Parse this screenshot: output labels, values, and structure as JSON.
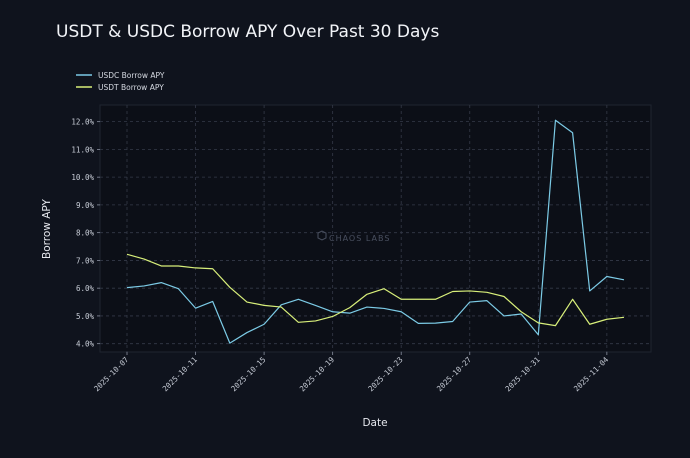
{
  "chart_data": {
    "type": "line",
    "title": "USDT & USDC Borrow APY Over Past 30 Days",
    "xlabel": "Date",
    "ylabel": "Borrow APY",
    "watermark": "CHAOS LABS",
    "ylim": [
      3.7,
      12.6
    ],
    "yticks": [
      "4.0%",
      "5.0%",
      "6.0%",
      "7.0%",
      "8.0%",
      "9.0%",
      "10.0%",
      "11.0%",
      "12.0%"
    ],
    "ytick_values": [
      4,
      5,
      6,
      7,
      8,
      9,
      10,
      11,
      12
    ],
    "xticks": [
      "2025-10-07",
      "2025-10-11",
      "2025-10-15",
      "2025-10-19",
      "2025-10-23",
      "2025-10-27",
      "2025-10-31",
      "2025-11-04"
    ],
    "x": [
      "2025-10-07",
      "2025-10-08",
      "2025-10-09",
      "2025-10-10",
      "2025-10-11",
      "2025-10-12",
      "2025-10-13",
      "2025-10-14",
      "2025-10-15",
      "2025-10-16",
      "2025-10-17",
      "2025-10-18",
      "2025-10-19",
      "2025-10-20",
      "2025-10-21",
      "2025-10-22",
      "2025-10-23",
      "2025-10-24",
      "2025-10-25",
      "2025-10-26",
      "2025-10-27",
      "2025-10-28",
      "2025-10-29",
      "2025-10-30",
      "2025-10-31",
      "2025-11-01",
      "2025-11-02",
      "2025-11-03",
      "2025-11-04",
      "2025-11-05"
    ],
    "grid": true,
    "legend_position": "top-left",
    "series": [
      {
        "name": "USDC Borrow APY",
        "color": "#7ccbe6",
        "values": [
          6.02,
          6.08,
          6.2,
          5.98,
          5.28,
          5.52,
          4.02,
          4.4,
          4.7,
          5.4,
          5.6,
          5.38,
          5.15,
          5.1,
          5.32,
          5.27,
          5.15,
          4.73,
          4.74,
          4.8,
          5.5,
          5.55,
          5.0,
          5.07,
          4.32,
          12.05,
          11.6,
          5.9,
          6.42,
          6.3
        ]
      },
      {
        "name": "USDT Borrow APY",
        "color": "#d8ef7a",
        "values": [
          7.22,
          7.05,
          6.8,
          6.8,
          6.73,
          6.7,
          6.03,
          5.5,
          5.38,
          5.32,
          4.77,
          4.82,
          4.98,
          5.3,
          5.78,
          5.98,
          5.6,
          5.6,
          5.6,
          5.88,
          5.9,
          5.85,
          5.7,
          5.15,
          4.75,
          4.65,
          5.6,
          4.7,
          4.88,
          4.95
        ]
      }
    ]
  }
}
